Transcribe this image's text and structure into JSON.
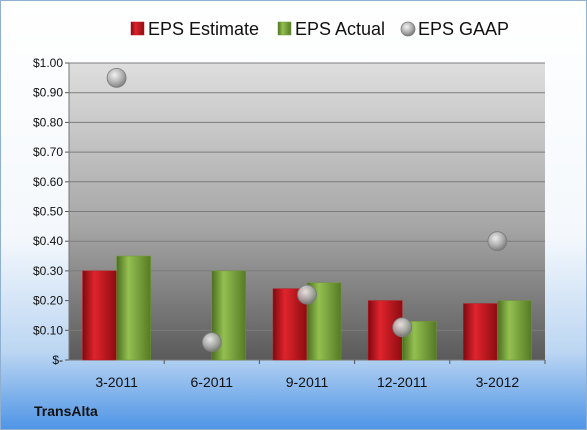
{
  "company": "TransAlta",
  "chart_data": {
    "type": "bar",
    "title": "",
    "xlabel": "",
    "ylabel": "",
    "categories": [
      "3-2011",
      "6-2011",
      "9-2011",
      "12-2011",
      "3-2012"
    ],
    "ylim": [
      0,
      1.0
    ],
    "yticks": [
      {
        "value": 0.0,
        "label": "$-"
      },
      {
        "value": 0.1,
        "label": "$0.10"
      },
      {
        "value": 0.2,
        "label": "$0.20"
      },
      {
        "value": 0.3,
        "label": "$0.30"
      },
      {
        "value": 0.4,
        "label": "$0.40"
      },
      {
        "value": 0.5,
        "label": "$0.50"
      },
      {
        "value": 0.6,
        "label": "$0.60"
      },
      {
        "value": 0.7,
        "label": "$0.70"
      },
      {
        "value": 0.8,
        "label": "$0.80"
      },
      {
        "value": 0.9,
        "label": "$0.90"
      },
      {
        "value": 1.0,
        "label": "$1.00"
      }
    ],
    "grid": true,
    "legend_position": "top",
    "series": [
      {
        "name": "EPS Estimate",
        "kind": "bar",
        "color": "#c0141c",
        "values": [
          0.3,
          null,
          0.24,
          0.2,
          0.19
        ]
      },
      {
        "name": "EPS Actual",
        "kind": "bar",
        "color": "#6e9a34",
        "values": [
          0.35,
          0.3,
          0.26,
          0.13,
          0.2
        ]
      },
      {
        "name": "EPS GAAP",
        "kind": "marker",
        "color": "#a8a8a8",
        "values": [
          0.95,
          0.06,
          0.22,
          0.11,
          0.4
        ]
      }
    ]
  }
}
